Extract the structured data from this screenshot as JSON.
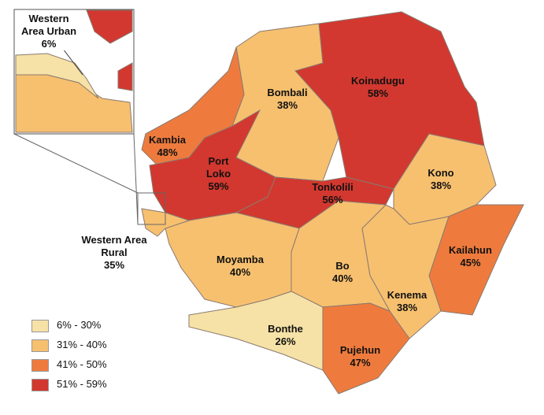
{
  "map": {
    "districts": [
      {
        "name": "Koinadugu",
        "value": 58,
        "value_label": "58%",
        "color": "#d2382f"
      },
      {
        "name": "Bombali",
        "value": 38,
        "value_label": "38%",
        "color": "#f7c06f"
      },
      {
        "name": "Kambia",
        "value": 48,
        "value_label": "48%",
        "color": "#ee7b3d"
      },
      {
        "name": "Port Loko",
        "value": 59,
        "value_label": "59%",
        "color": "#d2382f"
      },
      {
        "name": "Tonkolili",
        "value": 56,
        "value_label": "56%",
        "color": "#d2382f"
      },
      {
        "name": "Kono",
        "value": 38,
        "value_label": "38%",
        "color": "#f7c06f"
      },
      {
        "name": "Kailahun",
        "value": 45,
        "value_label": "45%",
        "color": "#ee7b3d"
      },
      {
        "name": "Kenema",
        "value": 38,
        "value_label": "38%",
        "color": "#f7c06f"
      },
      {
        "name": "Bo",
        "value": 40,
        "value_label": "40%",
        "color": "#f7c06f"
      },
      {
        "name": "Pujehun",
        "value": 47,
        "value_label": "47%",
        "color": "#ee7b3d"
      },
      {
        "name": "Bonthe",
        "value": 26,
        "value_label": "26%",
        "color": "#f6e2a6"
      },
      {
        "name": "Moyamba",
        "value": 40,
        "value_label": "40%",
        "color": "#f7c06f"
      },
      {
        "name": "Western Area Rural",
        "value": 35,
        "value_label": "35%",
        "color": "#f7c06f"
      },
      {
        "name": "Western Area Urban",
        "value": 6,
        "value_label": "6%",
        "color": "#f6e2a6"
      }
    ],
    "legend": [
      {
        "label": "6% - 30%",
        "color": "#f6e2a6"
      },
      {
        "label": "31% - 40%",
        "color": "#f7c06f"
      },
      {
        "label": "41% - 50%",
        "color": "#ee7b3d"
      },
      {
        "label": "51% - 59%",
        "color": "#d2382f"
      }
    ]
  }
}
